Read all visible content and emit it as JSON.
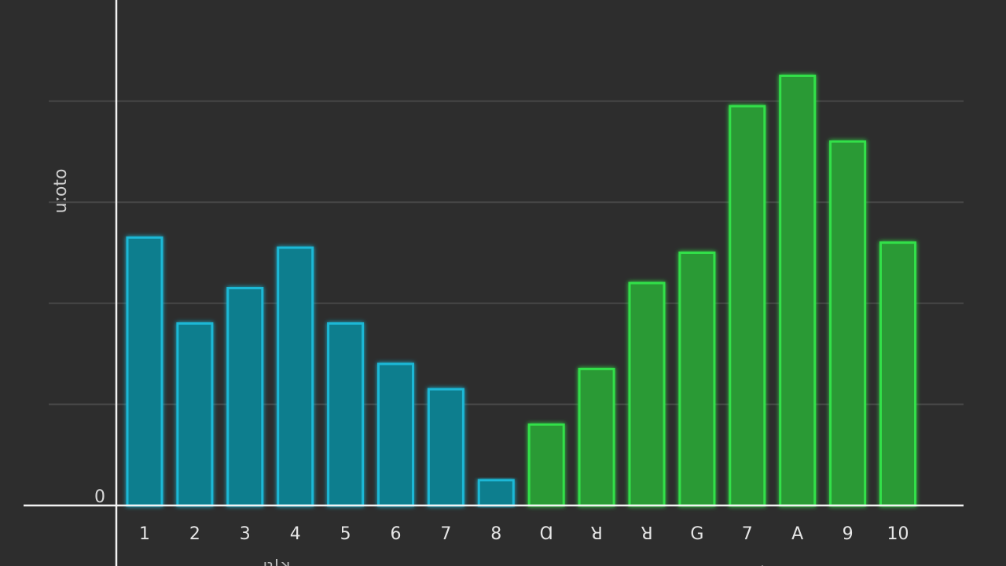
{
  "chart_data": {
    "type": "bar",
    "title": "",
    "ylabel": "oʇoːn",
    "xlabel": "",
    "ylim": [
      0,
      100
    ],
    "yticks": [
      0,
      20,
      40,
      60,
      80
    ],
    "y_zero_label": "0",
    "grid": true,
    "categories": [
      "1",
      "2",
      "3",
      "4",
      "5",
      "6",
      "7",
      "8",
      "Ɑ",
      "ꓤ",
      "ꓤ",
      "G",
      "7",
      "A",
      "9",
      "10"
    ],
    "values": [
      53,
      36,
      43,
      51,
      36,
      28,
      23,
      5,
      16,
      27,
      44,
      50,
      79,
      85,
      72,
      52
    ],
    "colors": [
      "#1ab8d6",
      "#1ab8d6",
      "#1ab8d6",
      "#1ab8d6",
      "#1ab8d6",
      "#1ab8d6",
      "#1ab8d6",
      "#1ab8d6",
      "#33e04a",
      "#33e04a",
      "#33e04a",
      "#33e04a",
      "#33e04a",
      "#33e04a",
      "#33e04a",
      "#33e04a"
    ],
    "fills": [
      "#117e8e",
      "#117e8e",
      "#117e8e",
      "#117e8e",
      "#117e8e",
      "#117e8e",
      "#117e8e",
      "#117e8e",
      "#2a9a34",
      "#2a9a34",
      "#2a9a34",
      "#2a9a34",
      "#2a9a34",
      "#2a9a34",
      "#2a9a34",
      "#2a9a34"
    ],
    "bottom_fragments": [
      "ıʇ!ʞ",
      "."
    ]
  }
}
